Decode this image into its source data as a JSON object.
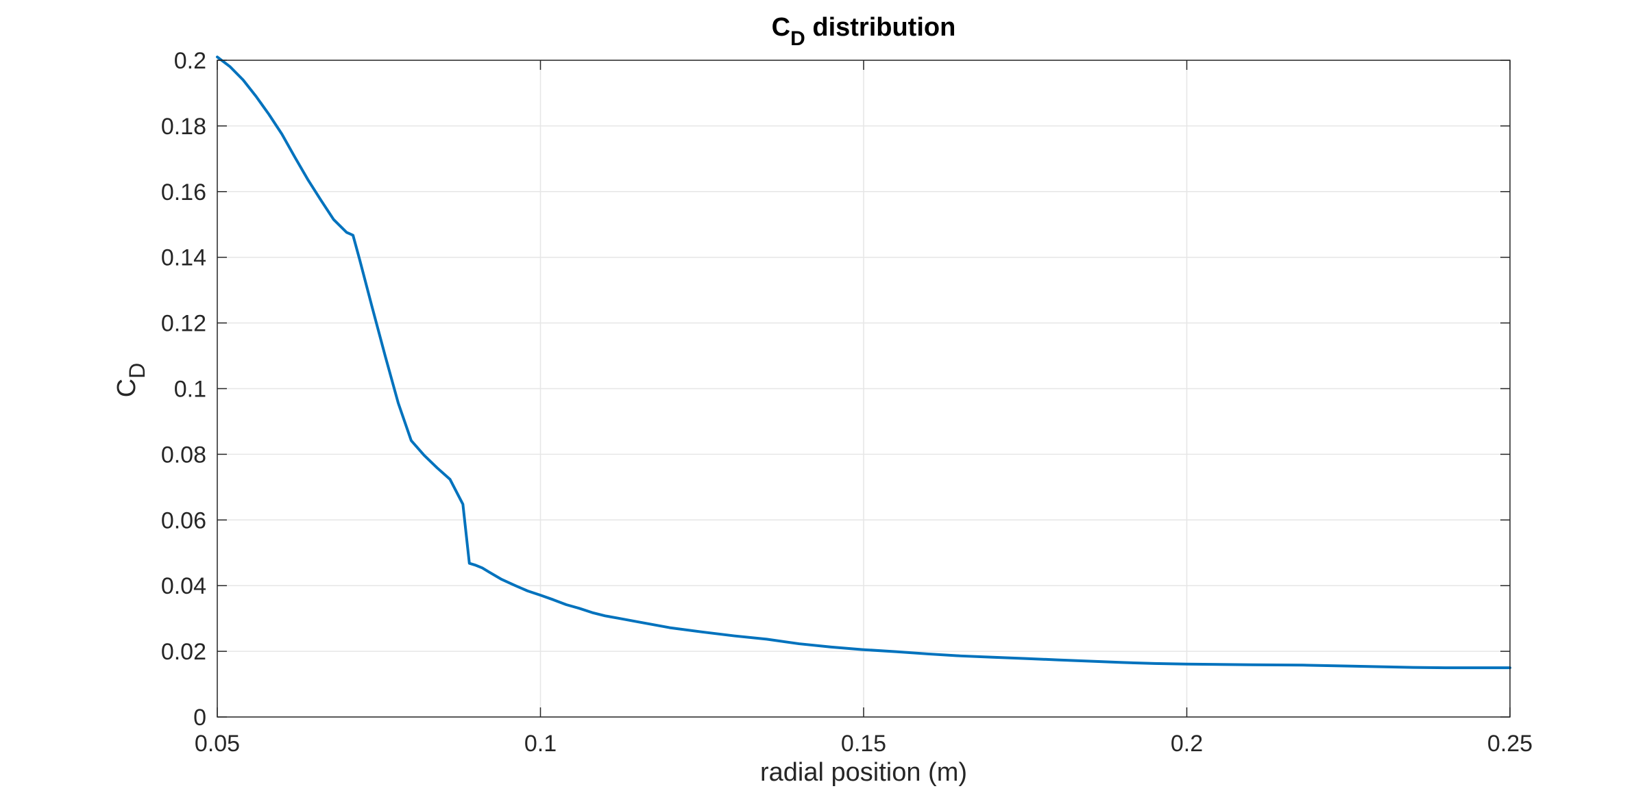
{
  "chart_data": {
    "type": "line",
    "title": {
      "main": "C",
      "main_sub": "D",
      "rest": " distribution"
    },
    "xlabel": "radial position (m)",
    "ylabel": {
      "main": "C",
      "sub": "D"
    },
    "xlim": [
      0.05,
      0.25
    ],
    "ylim": [
      0,
      0.2
    ],
    "x_ticks": [
      0.05,
      0.1,
      0.15,
      0.2,
      0.25
    ],
    "x_tick_labels": [
      "0.05",
      "0.1",
      "0.15",
      "0.2",
      "0.25"
    ],
    "y_ticks": [
      0,
      0.02,
      0.04,
      0.06,
      0.08,
      0.1,
      0.12,
      0.14,
      0.16,
      0.18,
      0.2
    ],
    "y_tick_labels": [
      "0",
      "0.02",
      "0.04",
      "0.06",
      "0.08",
      "0.1",
      "0.12",
      "0.14",
      "0.16",
      "0.18",
      "0.2"
    ],
    "grid": true,
    "legend": "none",
    "colors": {
      "line": "#0072BD",
      "grid": "#e6e6e6",
      "axes": "#262626"
    },
    "series": [
      {
        "x": [
          0.05,
          0.052,
          0.054,
          0.056,
          0.058,
          0.06,
          0.062,
          0.064,
          0.066,
          0.068,
          0.07,
          0.071,
          0.072,
          0.074,
          0.076,
          0.078,
          0.08,
          0.082,
          0.084,
          0.086,
          0.088,
          0.089,
          0.09,
          0.091,
          0.092,
          0.094,
          0.096,
          0.098,
          0.1,
          0.102,
          0.104,
          0.106,
          0.108,
          0.11,
          0.112,
          0.115,
          0.12,
          0.125,
          0.13,
          0.135,
          0.14,
          0.145,
          0.15,
          0.155,
          0.16,
          0.165,
          0.17,
          0.175,
          0.18,
          0.185,
          0.19,
          0.195,
          0.2,
          0.21,
          0.218,
          0.225,
          0.23,
          0.235,
          0.24,
          0.245,
          0.25
        ],
        "y": [
          0.201,
          0.198,
          0.194,
          0.189,
          0.1835,
          0.1775,
          0.1705,
          0.1637,
          0.1575,
          0.1515,
          0.1476,
          0.1467,
          0.1395,
          0.1245,
          0.1098,
          0.0956,
          0.0842,
          0.0797,
          0.0759,
          0.0724,
          0.0648,
          0.0468,
          0.0462,
          0.0454,
          0.0442,
          0.0419,
          0.0401,
          0.0384,
          0.0371,
          0.0357,
          0.0342,
          0.0331,
          0.0318,
          0.0308,
          0.0301,
          0.029,
          0.0272,
          0.0259,
          0.0247,
          0.0237,
          0.0223,
          0.0213,
          0.0205,
          0.0199,
          0.0192,
          0.0186,
          0.0182,
          0.0178,
          0.0174,
          0.017,
          0.0166,
          0.0163,
          0.0161,
          0.0159,
          0.0158,
          0.0155,
          0.0153,
          0.0151,
          0.015,
          0.015,
          0.015
        ]
      }
    ]
  }
}
